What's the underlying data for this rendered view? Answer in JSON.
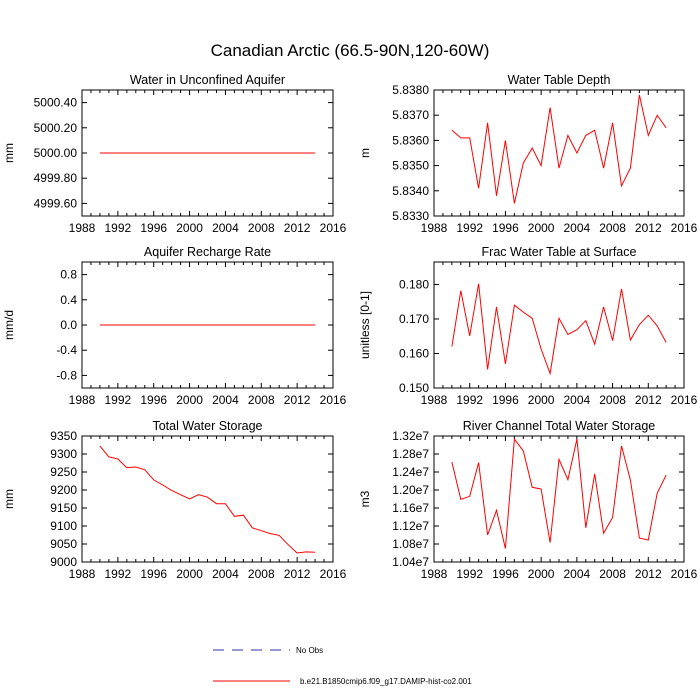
{
  "title": "Canadian Arctic (66.5-90N,120-60W)",
  "colors": {
    "model": "#ff0000",
    "obs": "#3030a0",
    "axes": "#000000"
  },
  "legend": {
    "obs_label": "No Obs",
    "model_label": "b.e21.B1850cmip6.f09_g17.DAMIP-hist-co2.001"
  },
  "chart_data": [
    {
      "type": "line",
      "title": "Water in Unconfined Aquifer",
      "ylabel": "mm",
      "xlim": [
        1988,
        2016
      ],
      "ylim": [
        4999.5,
        5000.5
      ],
      "xticks": [
        "1988",
        "1992",
        "1996",
        "2000",
        "2004",
        "2008",
        "2012",
        "2016"
      ],
      "yticks": [
        {
          "v": 4999.6,
          "label": "4999.60"
        },
        {
          "v": 4999.8,
          "label": "4999.80"
        },
        {
          "v": 5000.0,
          "label": "5000.00"
        },
        {
          "v": 5000.2,
          "label": "5000.20"
        },
        {
          "v": 5000.4,
          "label": "5000.40"
        }
      ],
      "x": [
        1990,
        1991,
        1992,
        1993,
        1994,
        1995,
        1996,
        1997,
        1998,
        1999,
        2000,
        2001,
        2002,
        2003,
        2004,
        2005,
        2006,
        2007,
        2008,
        2009,
        2010,
        2011,
        2012,
        2013,
        2014
      ],
      "series": [
        {
          "values": [
            5000,
            5000,
            5000,
            5000,
            5000,
            5000,
            5000,
            5000,
            5000,
            5000,
            5000,
            5000,
            5000,
            5000,
            5000,
            5000,
            5000,
            5000,
            5000,
            5000,
            5000,
            5000,
            5000,
            5000,
            5000
          ]
        }
      ]
    },
    {
      "type": "line",
      "title": "Water Table Depth",
      "ylabel": "m",
      "xlim": [
        1988,
        2016
      ],
      "ylim": [
        5.833,
        5.838
      ],
      "xticks": [
        "1988",
        "1992",
        "1996",
        "2000",
        "2004",
        "2008",
        "2012",
        "2016"
      ],
      "yticks": [
        {
          "v": 5.833,
          "label": "5.8330"
        },
        {
          "v": 5.834,
          "label": "5.8340"
        },
        {
          "v": 5.835,
          "label": "5.8350"
        },
        {
          "v": 5.836,
          "label": "5.8360"
        },
        {
          "v": 5.837,
          "label": "5.8370"
        },
        {
          "v": 5.838,
          "label": "5.8380"
        }
      ],
      "x": [
        1990,
        1991,
        1992,
        1993,
        1994,
        1995,
        1996,
        1997,
        1998,
        1999,
        2000,
        2001,
        2002,
        2003,
        2004,
        2005,
        2006,
        2007,
        2008,
        2009,
        2010,
        2011,
        2012,
        2013,
        2014
      ],
      "series": [
        {
          "values": [
            5.8364,
            5.8361,
            5.8361,
            5.8341,
            5.8367,
            5.8338,
            5.836,
            5.8335,
            5.8351,
            5.8357,
            5.835,
            5.8373,
            5.8349,
            5.8362,
            5.8355,
            5.8362,
            5.8364,
            5.8349,
            5.8367,
            5.8342,
            5.8349,
            5.8378,
            5.8362,
            5.837,
            5.8365
          ]
        }
      ]
    },
    {
      "type": "line",
      "title": "Aquifer Recharge Rate",
      "ylabel": "mm/d",
      "xlim": [
        1988,
        2016
      ],
      "ylim": [
        -1.0,
        1.0
      ],
      "xticks": [
        "1988",
        "1992",
        "1996",
        "2000",
        "2004",
        "2008",
        "2012",
        "2016"
      ],
      "yticks": [
        {
          "v": -0.8,
          "label": "-0.8"
        },
        {
          "v": -0.4,
          "label": "-0.4"
        },
        {
          "v": 0.0,
          "label": "0.0"
        },
        {
          "v": 0.4,
          "label": "0.4"
        },
        {
          "v": 0.8,
          "label": "0.8"
        }
      ],
      "x": [
        1990,
        1991,
        1992,
        1993,
        1994,
        1995,
        1996,
        1997,
        1998,
        1999,
        2000,
        2001,
        2002,
        2003,
        2004,
        2005,
        2006,
        2007,
        2008,
        2009,
        2010,
        2011,
        2012,
        2013,
        2014
      ],
      "series": [
        {
          "values": [
            0,
            0,
            0,
            0,
            0,
            0,
            0,
            0,
            0,
            0,
            0,
            0,
            0,
            0,
            0,
            0,
            0,
            0,
            0,
            0,
            0,
            0,
            0,
            0,
            0
          ]
        }
      ]
    },
    {
      "type": "line",
      "title": "Frac Water Table at Surface",
      "ylabel": "unitless [0-1]",
      "xlim": [
        1988,
        2016
      ],
      "ylim": [
        0.15,
        0.1865
      ],
      "xticks": [
        "1988",
        "1992",
        "1996",
        "2000",
        "2004",
        "2008",
        "2012",
        "2016"
      ],
      "yticks": [
        {
          "v": 0.15,
          "label": "0.150"
        },
        {
          "v": 0.16,
          "label": "0.160"
        },
        {
          "v": 0.17,
          "label": "0.170"
        },
        {
          "v": 0.18,
          "label": "0.180"
        }
      ],
      "x": [
        1990,
        1991,
        1992,
        1993,
        1994,
        1995,
        1996,
        1997,
        1998,
        1999,
        2000,
        2001,
        2002,
        2003,
        2004,
        2005,
        2006,
        2007,
        2008,
        2009,
        2010,
        2011,
        2012,
        2013,
        2014
      ],
      "series": [
        {
          "values": [
            0.162,
            0.1782,
            0.1651,
            0.1802,
            0.1554,
            0.1735,
            0.157,
            0.174,
            0.172,
            0.1702,
            0.1613,
            0.1542,
            0.1702,
            0.1655,
            0.1669,
            0.1695,
            0.1627,
            0.1735,
            0.1637,
            0.1787,
            0.1639,
            0.1684,
            0.1711,
            0.168,
            0.1632
          ]
        }
      ]
    },
    {
      "type": "line",
      "title": "Total Water Storage",
      "ylabel": "mm",
      "xlim": [
        1988,
        2016
      ],
      "ylim": [
        9000,
        9350
      ],
      "xticks": [
        "1988",
        "1992",
        "1996",
        "2000",
        "2004",
        "2008",
        "2012",
        "2016"
      ],
      "yticks": [
        {
          "v": 9000,
          "label": "9000"
        },
        {
          "v": 9050,
          "label": "9050"
        },
        {
          "v": 9100,
          "label": "9100"
        },
        {
          "v": 9150,
          "label": "9150"
        },
        {
          "v": 9200,
          "label": "9200"
        },
        {
          "v": 9250,
          "label": "9250"
        },
        {
          "v": 9300,
          "label": "9300"
        },
        {
          "v": 9350,
          "label": "9350"
        }
      ],
      "x": [
        1990,
        1991,
        1992,
        1993,
        1994,
        1995,
        1996,
        1997,
        1998,
        1999,
        2000,
        2001,
        2002,
        2003,
        2004,
        2005,
        2006,
        2007,
        2008,
        2009,
        2010,
        2011,
        2012,
        2013,
        2014
      ],
      "series": [
        {
          "values": [
            9322,
            9292,
            9286,
            9262,
            9264,
            9256,
            9228,
            9214,
            9199,
            9187,
            9175,
            9187,
            9180,
            9162,
            9162,
            9127,
            9130,
            9095,
            9087,
            9079,
            9074,
            9048,
            9025,
            9028,
            9027
          ]
        }
      ]
    },
    {
      "type": "line",
      "title": "River Channel Total Water Storage",
      "ylabel": "m3",
      "xlim": [
        1988,
        2016
      ],
      "ylim": [
        10400000,
        13200000
      ],
      "xticks": [
        "1988",
        "1992",
        "1996",
        "2000",
        "2004",
        "2008",
        "2012",
        "2016"
      ],
      "yticks": [
        {
          "v": 10400000,
          "label": "1.04e7"
        },
        {
          "v": 10800000,
          "label": "1.08e7"
        },
        {
          "v": 11200000,
          "label": "1.12e7"
        },
        {
          "v": 11600000,
          "label": "1.16e7"
        },
        {
          "v": 12000000,
          "label": "1.20e7"
        },
        {
          "v": 12400000,
          "label": "1.24e7"
        },
        {
          "v": 12800000,
          "label": "1.28e7"
        },
        {
          "v": 13200000,
          "label": "1.32e7"
        }
      ],
      "x": [
        1990,
        1991,
        1992,
        1993,
        1994,
        1995,
        1996,
        1997,
        1998,
        1999,
        2000,
        2001,
        2002,
        2003,
        2004,
        2005,
        2006,
        2007,
        2008,
        2009,
        2010,
        2011,
        2012,
        2013,
        2014
      ],
      "series": [
        {
          "values": [
            12620000,
            11790000,
            11860000,
            12610000,
            11000000,
            11550000,
            10700000,
            13130000,
            12870000,
            12060000,
            12020000,
            10830000,
            12680000,
            12230000,
            13130000,
            11160000,
            12360000,
            11040000,
            11390000,
            12980000,
            12220000,
            10930000,
            10890000,
            11930000,
            12330000
          ]
        }
      ]
    }
  ]
}
